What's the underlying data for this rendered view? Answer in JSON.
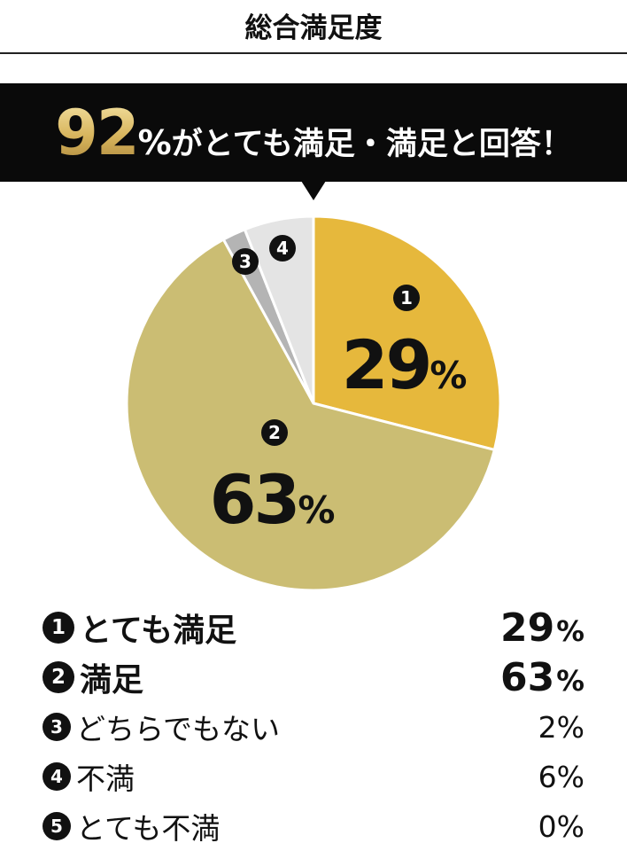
{
  "header": {
    "title": "総合満足度"
  },
  "banner": {
    "big_number": "92",
    "percent": "%",
    "text": "がとても満足・満足と回答！"
  },
  "chart_data": {
    "type": "pie",
    "categories": [
      "とても満足",
      "満足",
      "どちらでもない",
      "不満",
      "とても不満"
    ],
    "markers": [
      "1",
      "2",
      "3",
      "4",
      "5"
    ],
    "values": [
      29,
      63,
      2,
      6,
      0
    ],
    "unit": "%",
    "slice_labels": [
      {
        "marker": "1",
        "value": "29",
        "unit": "%"
      },
      {
        "marker": "2",
        "value": "63",
        "unit": "%"
      },
      {
        "marker": "3"
      },
      {
        "marker": "4"
      }
    ],
    "colors": [
      "#e6b83c",
      "#cbbd73",
      "#b4b4b4",
      "#e4e4e4",
      "#ffffff"
    ],
    "start_angle": "12 o'clock",
    "direction": "clockwise"
  },
  "legend": [
    {
      "marker": "1",
      "label": "とても満足",
      "value": "29",
      "unit": "%"
    },
    {
      "marker": "2",
      "label": "満足",
      "value": "63",
      "unit": "%"
    },
    {
      "marker": "3",
      "label": "どちらでもない",
      "value": "2",
      "unit": "%"
    },
    {
      "marker": "4",
      "label": "不満",
      "value": "6",
      "unit": "%"
    },
    {
      "marker": "5",
      "label": "とても不満",
      "value": "0",
      "unit": "%"
    }
  ]
}
